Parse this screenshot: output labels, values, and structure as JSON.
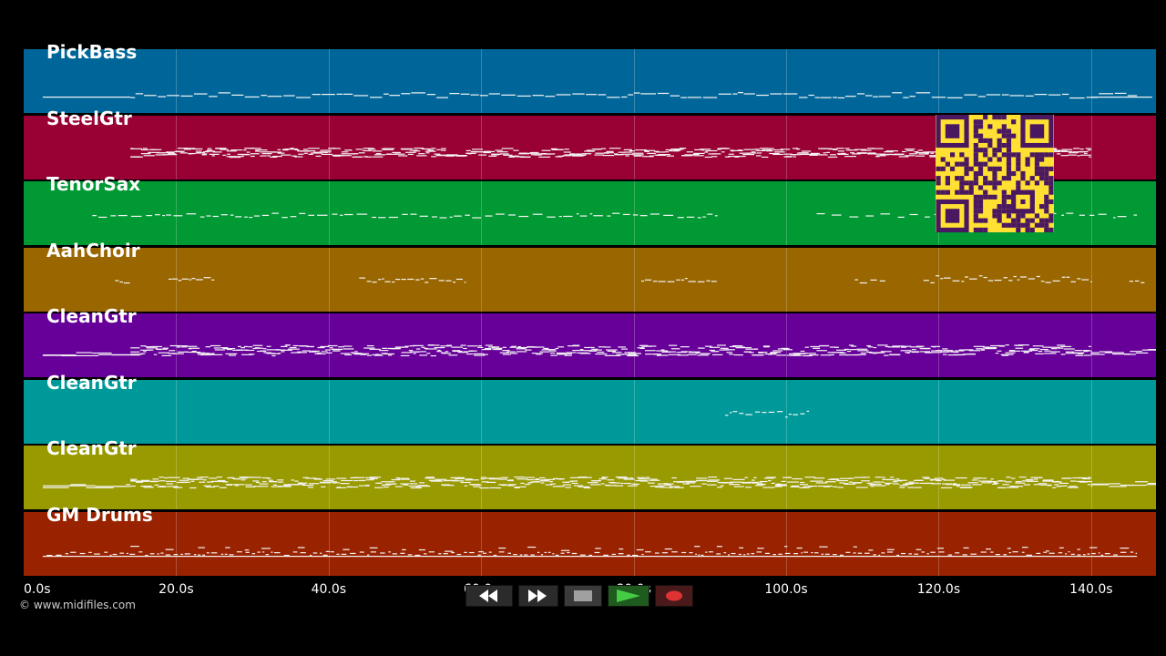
{
  "tracks": [
    {
      "name": "PickBass",
      "color": "#006699",
      "notes": "bass"
    },
    {
      "name": "SteelGtr",
      "color": "#990033",
      "notes": "dense"
    },
    {
      "name": "TenorSax",
      "color": "#009933",
      "notes": "sparse"
    },
    {
      "name": "AahChoir",
      "color": "#996600",
      "notes": "clusters"
    },
    {
      "name": "CleanGtr",
      "color": "#660099",
      "notes": "dense-full"
    },
    {
      "name": "CleanGtr",
      "color": "#009999",
      "notes": "tiny"
    },
    {
      "name": "CleanGtr",
      "color": "#999900",
      "notes": "dense-full"
    },
    {
      "name": "GM Drums",
      "color": "#992200",
      "notes": "drums"
    }
  ],
  "time_axis": {
    "labels": [
      "0.0s",
      "20.0s",
      "40.0s",
      "60.0s",
      "80.0s",
      "100.0s",
      "120.0s",
      "140.0s"
    ],
    "max_seconds": 148.5
  },
  "copyright": "© www.midifiles.com",
  "transport": {
    "buttons": [
      {
        "name": "rewind-button",
        "icon": "rewind-icon"
      },
      {
        "name": "fast-forward-button",
        "icon": "fast-forward-icon"
      },
      {
        "name": "stop-button",
        "icon": "stop-icon"
      },
      {
        "name": "play-button",
        "icon": "play-icon",
        "color": "#33aa33"
      },
      {
        "name": "record-button",
        "icon": "record-icon",
        "color": "#cc3333"
      }
    ]
  }
}
